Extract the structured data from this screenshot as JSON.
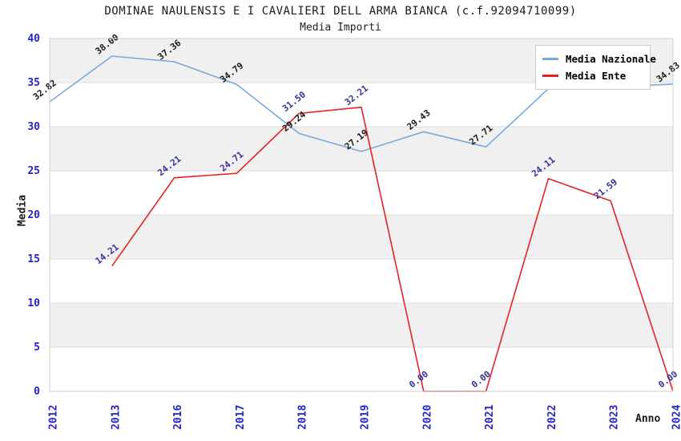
{
  "chart_data": {
    "type": "line",
    "title": "DOMINAE NAULENSIS E I CAVALIERI DELL ARMA BIANCA (c.f.92094710099)",
    "subtitle": "Media Importi",
    "xlabel": "Anno",
    "ylabel": "Media",
    "categories": [
      "2012",
      "2013",
      "2016",
      "2017",
      "2018",
      "2019",
      "2020",
      "2021",
      "2022",
      "2023",
      "2024"
    ],
    "ylim": [
      0,
      40
    ],
    "ytick_step": 5,
    "yticks": [
      0,
      5,
      10,
      15,
      20,
      25,
      30,
      35,
      40
    ],
    "grid": "horizontal-bands",
    "legend_position": "top-right",
    "series": [
      {
        "name": "Media Nazionale",
        "color": "#79a9dc",
        "label_color": "#1a1a1a",
        "values": [
          32.82,
          38.0,
          37.36,
          34.79,
          29.24,
          27.19,
          29.43,
          27.71,
          34.3,
          34.5,
          34.83
        ],
        "labels": [
          "32.82",
          "38.00",
          "37.36",
          "34.79",
          "29.24",
          "27.19",
          "29.43",
          "27.71",
          null,
          null,
          "34.83"
        ]
      },
      {
        "name": "Media Ente",
        "color": "#e62222",
        "label_color": "#333399",
        "values": [
          null,
          14.21,
          24.21,
          24.71,
          31.5,
          32.21,
          0.0,
          0.0,
          24.11,
          21.59,
          0.0
        ],
        "labels": [
          null,
          "14.21",
          "24.21",
          "24.71",
          "31.50",
          "32.21",
          "0.00",
          "0.00",
          "24.11",
          "21.59",
          "0.00"
        ]
      }
    ],
    "colors": {
      "tick_label": "#2323cd",
      "band_gray": "#f0f0f0",
      "band_white": "#ffffff",
      "gridline": "#dcdcdc",
      "plot_border": "#d0d0d0"
    }
  }
}
